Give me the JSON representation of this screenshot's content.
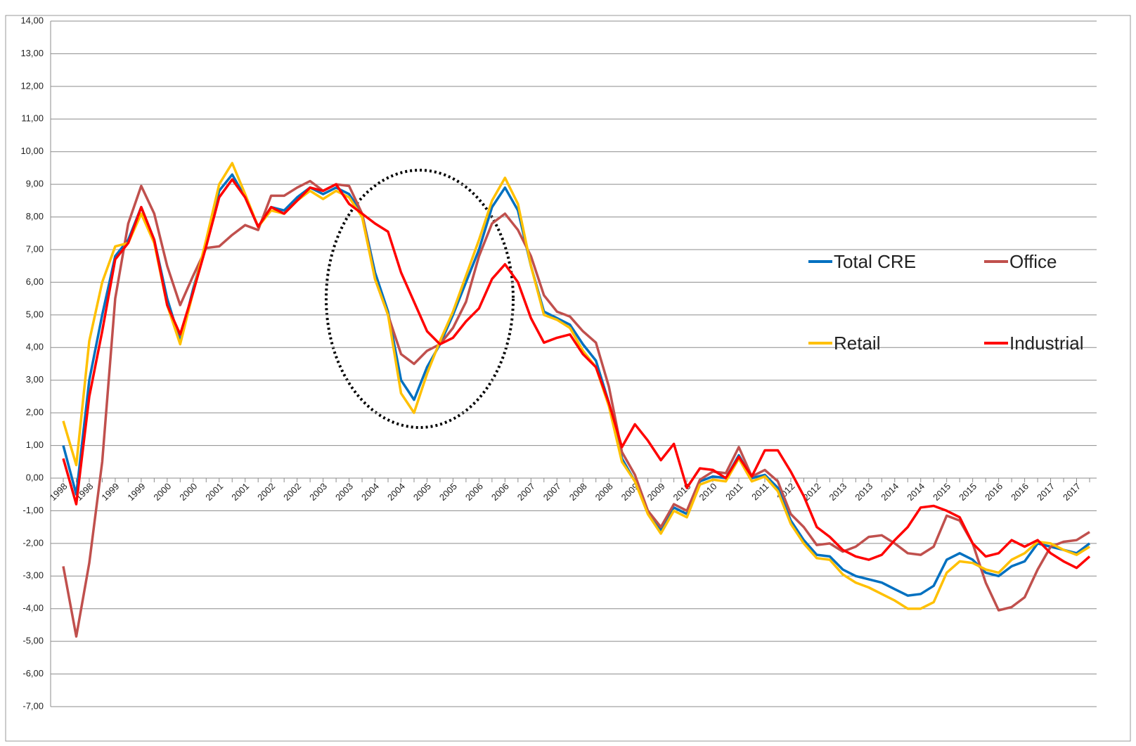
{
  "chart_data": {
    "type": "line",
    "categories": [
      "1998",
      null,
      "1998",
      null,
      "1999",
      null,
      "1999",
      null,
      "2000",
      null,
      "2000",
      null,
      "2001",
      null,
      "2001",
      null,
      "2002",
      null,
      "2002",
      null,
      "2003",
      null,
      "2003",
      null,
      "2004",
      null,
      "2004",
      null,
      "2005",
      null,
      "2005",
      null,
      "2006",
      null,
      "2006",
      null,
      "2007",
      null,
      "2007",
      null,
      "2008",
      null,
      "2008",
      null,
      "2009",
      null,
      "2009",
      null,
      "2010",
      null,
      "2010",
      null,
      "2011",
      null,
      "2011",
      null,
      "2012",
      null,
      "2012",
      null,
      "2013",
      null,
      "2013",
      null,
      "2014",
      null,
      "2014",
      null,
      "2015",
      null,
      "2015",
      null,
      "2016",
      null,
      "2016",
      null,
      "2017",
      null,
      "2017",
      null
    ],
    "series": [
      {
        "name": "Total CRE",
        "color": "#0070c0",
        "values": [
          1.0,
          -0.5,
          3.0,
          5.0,
          6.8,
          7.3,
          8.3,
          7.3,
          5.5,
          4.2,
          5.8,
          7.2,
          8.8,
          9.3,
          8.6,
          7.7,
          8.3,
          8.2,
          8.6,
          8.9,
          8.7,
          8.9,
          8.7,
          8.1,
          6.3,
          5.1,
          3.0,
          2.4,
          3.4,
          4.1,
          5.0,
          6.0,
          7.0,
          8.3,
          8.9,
          8.2,
          6.5,
          5.1,
          4.9,
          4.7,
          4.1,
          3.6,
          2.3,
          0.6,
          -0.1,
          -1.0,
          -1.6,
          -0.9,
          -1.1,
          -0.1,
          0.05,
          0.0,
          0.7,
          0.0,
          0.1,
          -0.3,
          -1.3,
          -1.9,
          -2.35,
          -2.4,
          -2.8,
          -3.0,
          -3.1,
          -3.2,
          -3.4,
          -3.6,
          -3.55,
          -3.3,
          -2.5,
          -2.3,
          -2.5,
          -2.9,
          -3.0,
          -2.7,
          -2.55,
          -2.0,
          -2.1,
          -2.2,
          -2.3,
          -2.0
        ]
      },
      {
        "name": "Office",
        "color": "#c0504d",
        "values": [
          -2.7,
          -4.85,
          -2.6,
          0.5,
          5.5,
          7.8,
          8.95,
          8.1,
          6.5,
          5.3,
          6.2,
          7.05,
          7.1,
          7.45,
          7.75,
          7.6,
          8.65,
          8.65,
          8.9,
          9.1,
          8.8,
          9.0,
          8.95,
          8.1,
          6.1,
          5.0,
          3.8,
          3.5,
          3.9,
          4.1,
          4.6,
          5.4,
          6.8,
          7.8,
          8.1,
          7.6,
          6.8,
          5.6,
          5.1,
          4.95,
          4.5,
          4.15,
          2.8,
          0.8,
          0.1,
          -1.0,
          -1.5,
          -0.8,
          -1.0,
          -0.05,
          0.2,
          0.15,
          0.95,
          0.05,
          0.25,
          -0.1,
          -1.1,
          -1.5,
          -2.05,
          -2.0,
          -2.25,
          -2.1,
          -1.8,
          -1.75,
          -2.0,
          -2.3,
          -2.35,
          -2.1,
          -1.15,
          -1.3,
          -2.0,
          -3.2,
          -4.05,
          -3.95,
          -3.65,
          -2.8,
          -2.1,
          -1.95,
          -1.9,
          -1.65
        ]
      },
      {
        "name": "Retail",
        "color": "#ffc000",
        "values": [
          1.75,
          0.4,
          4.2,
          6.0,
          7.1,
          7.2,
          8.1,
          7.2,
          5.3,
          4.1,
          5.7,
          7.3,
          9.0,
          9.65,
          8.7,
          7.7,
          8.2,
          8.1,
          8.5,
          8.8,
          8.55,
          8.8,
          8.6,
          8.0,
          6.1,
          5.0,
          2.6,
          2.0,
          3.2,
          4.2,
          5.1,
          6.2,
          7.3,
          8.5,
          9.2,
          8.4,
          6.5,
          5.0,
          4.85,
          4.6,
          3.9,
          3.4,
          2.2,
          0.5,
          -0.1,
          -1.1,
          -1.7,
          -1.0,
          -1.2,
          -0.2,
          -0.05,
          -0.1,
          0.6,
          -0.1,
          0.05,
          -0.4,
          -1.4,
          -2.0,
          -2.45,
          -2.5,
          -2.95,
          -3.2,
          -3.35,
          -3.55,
          -3.75,
          -4.0,
          -4.0,
          -3.8,
          -2.9,
          -2.55,
          -2.6,
          -2.8,
          -2.9,
          -2.5,
          -2.3,
          -1.95,
          -2.0,
          -2.2,
          -2.35,
          -2.1
        ]
      },
      {
        "name": "Industrial",
        "color": "#ff0000",
        "values": [
          0.6,
          -0.8,
          2.5,
          4.5,
          6.7,
          7.2,
          8.3,
          7.3,
          5.3,
          4.4,
          5.7,
          7.1,
          8.6,
          9.15,
          8.6,
          7.7,
          8.3,
          8.1,
          8.5,
          8.9,
          8.8,
          9.0,
          8.4,
          8.1,
          7.8,
          7.55,
          6.3,
          5.4,
          4.5,
          4.1,
          4.3,
          4.8,
          5.2,
          6.1,
          6.55,
          6.0,
          4.9,
          4.15,
          4.3,
          4.4,
          3.8,
          3.4,
          2.3,
          0.95,
          1.65,
          1.15,
          0.55,
          1.05,
          -0.3,
          0.3,
          0.25,
          0.0,
          0.65,
          0.05,
          0.85,
          0.85,
          0.2,
          -0.55,
          -1.5,
          -1.8,
          -2.2,
          -2.4,
          -2.5,
          -2.35,
          -1.9,
          -1.5,
          -0.9,
          -0.85,
          -1.0,
          -1.2,
          -2.0,
          -2.4,
          -2.3,
          -1.9,
          -2.1,
          -1.9,
          -2.3,
          -2.55,
          -2.75,
          -2.4
        ]
      }
    ],
    "ylim": [
      -7,
      14
    ],
    "yticks": [
      {
        "value": -7,
        "label": "-7,00"
      },
      {
        "value": -6,
        "label": "-6,00"
      },
      {
        "value": -5,
        "label": "-5,00"
      },
      {
        "value": -4,
        "label": "-4,00"
      },
      {
        "value": -3,
        "label": "-3,00"
      },
      {
        "value": -2,
        "label": "-2,00"
      },
      {
        "value": -1,
        "label": "-1,00"
      },
      {
        "value": 0,
        "label": "0,00"
      },
      {
        "value": 1,
        "label": "1,00"
      },
      {
        "value": 2,
        "label": "2,00"
      },
      {
        "value": 3,
        "label": "3,00"
      },
      {
        "value": 4,
        "label": "4,00"
      },
      {
        "value": 5,
        "label": "5,00"
      },
      {
        "value": 6,
        "label": "6,00"
      },
      {
        "value": 7,
        "label": "7,00"
      },
      {
        "value": 8,
        "label": "8,00"
      },
      {
        "value": 9,
        "label": "9,00"
      },
      {
        "value": 10,
        "label": "10,00"
      },
      {
        "value": 11,
        "label": "11,00"
      },
      {
        "value": 12,
        "label": "12,00"
      },
      {
        "value": 13,
        "label": "13,00"
      },
      {
        "value": 14,
        "label": "14,00"
      }
    ],
    "grid": true,
    "legend": "right"
  }
}
